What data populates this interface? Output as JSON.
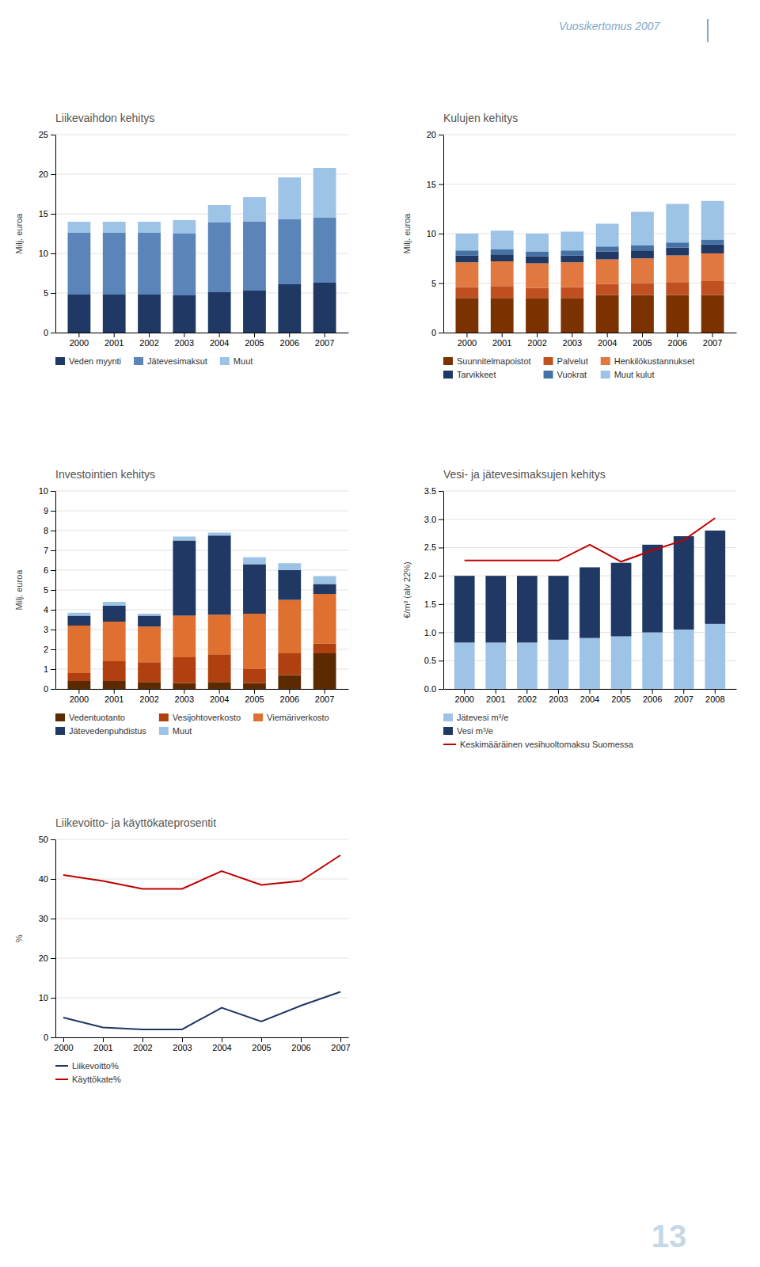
{
  "title": "Vuosikertomus 2007",
  "annotations": [
    "13"
  ],
  "chart_data": [
    {
      "type": "bar",
      "title": "Liikevaihdon kehitys",
      "categories": [
        "2000",
        "2001",
        "2002",
        "2003",
        "2004",
        "2005",
        "2006",
        "2007"
      ],
      "series": [
        {
          "name": "Veden myynti",
          "color": "#1f3864",
          "values": [
            4.8,
            4.8,
            4.8,
            4.7,
            5.1,
            5.3,
            6.1,
            6.3
          ]
        },
        {
          "name": "Jätevesimaksut",
          "color": "#5b84b8",
          "values": [
            7.8,
            7.8,
            7.8,
            7.8,
            8.8,
            8.7,
            8.2,
            8.2
          ]
        },
        {
          "name": "Muut",
          "color": "#9dc3e6",
          "values": [
            1.4,
            1.4,
            1.4,
            1.7,
            2.2,
            3.1,
            5.3,
            6.3
          ]
        }
      ],
      "ylabel": "Milj. euroa",
      "ylim": [
        0,
        25
      ],
      "yticks": [
        0,
        5,
        10,
        15,
        20,
        25
      ],
      "stacked": true,
      "grid": true,
      "legend": "bottom"
    },
    {
      "type": "bar",
      "title": "Kulujen kehitys",
      "categories": [
        "2000",
        "2001",
        "2002",
        "2003",
        "2004",
        "2005",
        "2006",
        "2007"
      ],
      "series": [
        {
          "name": "Suunnitelmapoistot",
          "color": "#7b3200",
          "values": [
            3.5,
            3.5,
            3.5,
            3.5,
            3.8,
            3.8,
            3.8,
            3.8
          ]
        },
        {
          "name": "Palvelut",
          "color": "#c05020",
          "values": [
            1.1,
            1.2,
            1.0,
            1.1,
            1.1,
            1.2,
            1.3,
            1.4
          ]
        },
        {
          "name": "Henkilökustannukset",
          "color": "#e07840",
          "values": [
            2.5,
            2.5,
            2.5,
            2.5,
            2.5,
            2.5,
            2.7,
            2.8
          ]
        },
        {
          "name": "Tarvikkeet",
          "color": "#1f3864",
          "values": [
            0.7,
            0.7,
            0.7,
            0.7,
            0.8,
            0.8,
            0.8,
            0.9
          ]
        },
        {
          "name": "Vuokrat",
          "color": "#4472a4",
          "values": [
            0.5,
            0.5,
            0.5,
            0.5,
            0.5,
            0.5,
            0.5,
            0.5
          ]
        },
        {
          "name": "Muut kulut",
          "color": "#9dc3e6",
          "values": [
            1.7,
            1.9,
            1.8,
            1.9,
            2.3,
            3.4,
            3.9,
            3.9
          ]
        }
      ],
      "ylabel": "Milj. euroa",
      "ylim": [
        0,
        20
      ],
      "yticks": [
        0,
        5,
        10,
        15,
        20
      ],
      "stacked": true,
      "grid": true,
      "legend": "bottom"
    },
    {
      "type": "bar",
      "title": "Investointien kehitys",
      "categories": [
        "2000",
        "2001",
        "2002",
        "2003",
        "2004",
        "2005",
        "2006",
        "2007"
      ],
      "series": [
        {
          "name": "Vedentuotanto",
          "color": "#5c2a00",
          "values": [
            0.4,
            0.4,
            0.35,
            0.3,
            0.35,
            0.3,
            0.7,
            1.8
          ]
        },
        {
          "name": "Vesijohtoverkosto",
          "color": "#b04010",
          "values": [
            0.4,
            1.0,
            1.0,
            1.3,
            1.4,
            0.7,
            1.1,
            0.5
          ]
        },
        {
          "name": "Viemäriverkosto",
          "color": "#e07030",
          "values": [
            2.4,
            2.0,
            1.8,
            2.1,
            2.0,
            2.8,
            2.7,
            2.5
          ]
        },
        {
          "name": "Jätevedenpuhdistus",
          "color": "#1f3864",
          "values": [
            0.5,
            0.8,
            0.55,
            3.8,
            4.0,
            2.5,
            1.5,
            0.5
          ]
        },
        {
          "name": "Muut",
          "color": "#9dc3e6",
          "values": [
            0.15,
            0.2,
            0.1,
            0.2,
            0.15,
            0.35,
            0.35,
            0.4
          ]
        }
      ],
      "ylabel": "Milj. euroa",
      "ylim": [
        0,
        10
      ],
      "yticks": [
        0,
        1,
        2,
        3,
        4,
        5,
        6,
        7,
        8,
        9,
        10
      ],
      "stacked": true,
      "grid": true,
      "legend": "bottom"
    },
    {
      "type": "bar",
      "title": "Vesi- ja jätevesimaksujen kehitys",
      "categories": [
        "2000",
        "2001",
        "2002",
        "2003",
        "2004",
        "2005",
        "2006",
        "2007",
        "2008"
      ],
      "series": [
        {
          "name": "Jätevesi m³/e",
          "type": "bar",
          "color": "#9dc3e6",
          "values": [
            0.82,
            0.82,
            0.82,
            0.87,
            0.9,
            0.93,
            1.0,
            1.05,
            1.15
          ]
        },
        {
          "name": "Vesi m³/e",
          "type": "bar",
          "color": "#1f3864",
          "values": [
            1.18,
            1.18,
            1.18,
            1.13,
            1.25,
            1.3,
            1.55,
            1.65,
            1.65
          ]
        },
        {
          "name": "Keskimääräinen vesihuoltomaksu Suomessa",
          "type": "line",
          "color": "#c00000",
          "values": [
            2.27,
            2.27,
            2.27,
            2.27,
            2.55,
            2.25,
            2.45,
            2.63,
            3.02
          ]
        }
      ],
      "ylabel": "€/m³ (alv 22%)",
      "ylim": [
        0,
        3.5
      ],
      "yticks": [
        {
          "value": 0,
          "label": "0.0"
        },
        0.5,
        {
          "value": 1,
          "label": "1.0"
        },
        1.5,
        {
          "value": 2,
          "label": "2.0"
        },
        2.5,
        {
          "value": 3,
          "label": "3.0"
        },
        3.5
      ],
      "stacked": true,
      "grid": true,
      "legend": "bottom"
    },
    {
      "type": "line",
      "title": "Liikevoitto- ja käyttökateprosentit",
      "categories": [
        "2000",
        "2001",
        "2002",
        "2003",
        "2004",
        "2005",
        "2006",
        "2007"
      ],
      "series": [
        {
          "name": "Liikevoitto%",
          "color": "#1f3864",
          "values": [
            5.0,
            2.5,
            2.0,
            2.0,
            7.5,
            4.0,
            8.0,
            11.5
          ]
        },
        {
          "name": "Käyttökate%",
          "color": "#c00000",
          "values": [
            41.0,
            39.5,
            37.5,
            37.5,
            42.0,
            38.5,
            39.5,
            46.0
          ]
        }
      ],
      "ylabel": "%",
      "ylim": [
        0,
        50
      ],
      "yticks": [
        0,
        10,
        20,
        30,
        40,
        50
      ],
      "grid": true,
      "legend": "bottom"
    }
  ]
}
